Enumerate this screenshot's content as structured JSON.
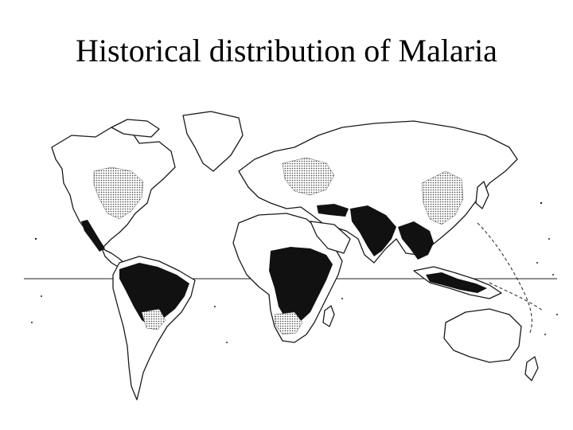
{
  "slide": {
    "title": "Historical distribution of Malaria"
  },
  "map": {
    "projection": "world map, equator line shown",
    "legend_shown": false,
    "fill_colors": {
      "high_prevalence": "#111111",
      "stippled_region": "#888888",
      "land": "#ffffff",
      "outline": "#1a1a1a"
    }
  }
}
